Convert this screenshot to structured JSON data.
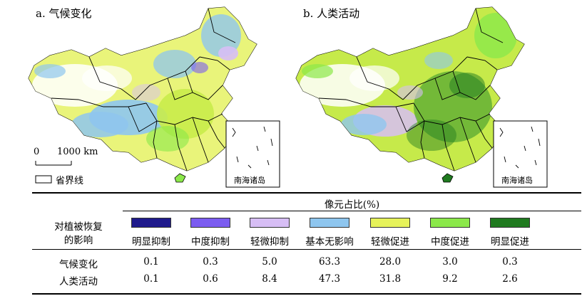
{
  "panels": [
    {
      "title": "a. 气候变化",
      "inset_label": "南海诸岛"
    },
    {
      "title": "b. 人类活动",
      "inset_label": "南海诸岛"
    }
  ],
  "scale_bar": {
    "zero": "0",
    "distance": "1000 km"
  },
  "boundary_legend": "省界线",
  "table": {
    "header_group": "像元占比(%)",
    "row_header": "对植被恢复的影响",
    "row_header_line1": "对植被恢复",
    "row_header_line2": "的影响",
    "categories": [
      {
        "label": "明显抑制",
        "color": "#1f1a8c"
      },
      {
        "label": "中度抑制",
        "color": "#7b5cf0"
      },
      {
        "label": "轻微抑制",
        "color": "#d7bef5"
      },
      {
        "label": "基本无影响",
        "color": "#8ec6ef"
      },
      {
        "label": "轻微促进",
        "color": "#e6f25a"
      },
      {
        "label": "中度促进",
        "color": "#8be84a"
      },
      {
        "label": "明显促进",
        "color": "#1f7a1f"
      }
    ],
    "rows": [
      {
        "label": "气候变化",
        "values": [
          "0.1",
          "0.3",
          "5.0",
          "63.3",
          "28.0",
          "3.0",
          "0.3"
        ]
      },
      {
        "label": "人类活动",
        "values": [
          "0.1",
          "0.6",
          "8.4",
          "47.3",
          "31.8",
          "9.2",
          "2.6"
        ]
      }
    ]
  }
}
